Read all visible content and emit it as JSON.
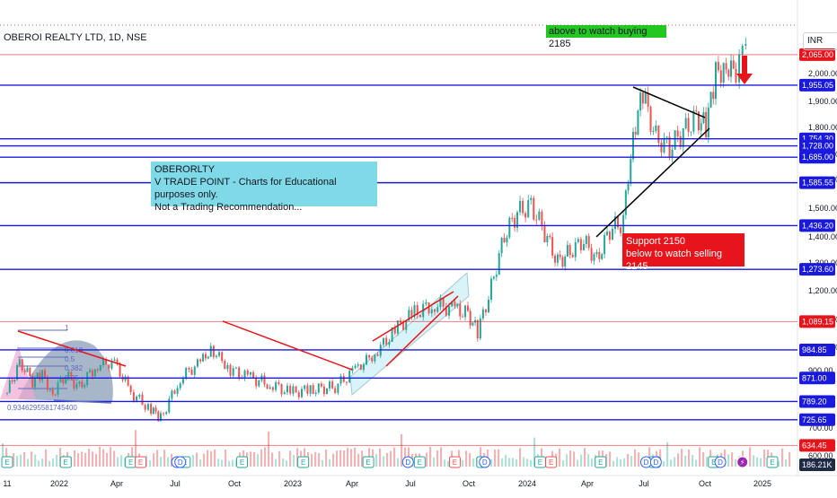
{
  "header": {
    "title": "OBEROI REALTY LTD, 1D, NSE",
    "currency": "INR"
  },
  "notes": {
    "edu_lines": [
      "OBERORLTY",
      "V TRADE POINT - Charts for Educational purposes only.",
      "Not a Trading Recommendation..."
    ],
    "support_lines": [
      "Support 2150",
      "below to watch selling 2145"
    ],
    "buy_line": "above to watch buying 2185"
  },
  "colors": {
    "bull": "#26a69a",
    "bear": "#ef5350",
    "level_blue": "#1a1adc",
    "level_red": "#e8141b",
    "trend_red": "#e8141b",
    "channel_fill": "#b2ebf2",
    "fib_fill": "#8a9db5",
    "volume_label_bg": "#1f2a44"
  },
  "chart_data": {
    "type": "candlestick",
    "symbol": "OBEROI REALTY LTD",
    "interval": "1D",
    "exchange": "NSE",
    "x_range": [
      "2021-11-01",
      "2025-01-31"
    ],
    "x_tick_labels": [
      "11",
      "2022",
      "Apr",
      "Jul",
      "Oct",
      "2023",
      "Apr",
      "Jul",
      "Oct",
      "2024",
      "Apr",
      "Jul",
      "Oct",
      "2025"
    ],
    "y_tick_labels": [
      "600.00",
      "700.00",
      "800.00",
      "900.00",
      "1,000.00",
      "1,100.00",
      "1,200.00",
      "1,300.00",
      "1,400.00",
      "1,500.00",
      "1,600.00",
      "1,700.00",
      "1,800.00",
      "1,900.00",
      "2,000.00"
    ],
    "price_path": [
      [
        "2021-11-01",
        820
      ],
      [
        "2021-11-20",
        930
      ],
      [
        "2021-12-10",
        860
      ],
      [
        "2021-12-25",
        880
      ],
      [
        "2022-01-10",
        820
      ],
      [
        "2022-01-30",
        880
      ],
      [
        "2022-02-20",
        840
      ],
      [
        "2022-03-20",
        920
      ],
      [
        "2022-04-15",
        930
      ],
      [
        "2022-05-10",
        820
      ],
      [
        "2022-06-10",
        760
      ],
      [
        "2022-06-25",
        730
      ],
      [
        "2022-07-25",
        870
      ],
      [
        "2022-08-25",
        930
      ],
      [
        "2022-09-10",
        990
      ],
      [
        "2022-10-10",
        900
      ],
      [
        "2022-11-10",
        870
      ],
      [
        "2022-12-10",
        850
      ],
      [
        "2023-01-10",
        820
      ],
      [
        "2023-02-10",
        830
      ],
      [
        "2023-03-20",
        840
      ],
      [
        "2023-04-20",
        900
      ],
      [
        "2023-05-20",
        970
      ],
      [
        "2023-06-20",
        1060
      ],
      [
        "2023-07-20",
        1120
      ],
      [
        "2023-08-20",
        1150
      ],
      [
        "2023-09-20",
        1130
      ],
      [
        "2023-10-10",
        1120
      ],
      [
        "2023-10-25",
        1050
      ],
      [
        "2023-11-15",
        1210
      ],
      [
        "2023-12-05",
        1400
      ],
      [
        "2023-12-25",
        1480
      ],
      [
        "2024-01-15",
        1510
      ],
      [
        "2024-02-05",
        1410
      ],
      [
        "2024-02-25",
        1300
      ],
      [
        "2024-03-15",
        1340
      ],
      [
        "2024-04-05",
        1380
      ],
      [
        "2024-04-25",
        1310
      ],
      [
        "2024-05-15",
        1420
      ],
      [
        "2024-06-05",
        1450
      ],
      [
        "2024-06-20",
        1780
      ],
      [
        "2024-07-05",
        1920
      ],
      [
        "2024-07-25",
        1760
      ],
      [
        "2024-08-15",
        1720
      ],
      [
        "2024-09-05",
        1780
      ],
      [
        "2024-09-25",
        1840
      ],
      [
        "2024-10-10",
        1800
      ],
      [
        "2024-10-25",
        1990
      ],
      [
        "2024-11-10",
        2040
      ],
      [
        "2024-11-25",
        1970
      ],
      [
        "2024-12-05",
        2060
      ],
      [
        "2024-12-15",
        2230
      ]
    ],
    "volume_label": "186.21K"
  },
  "levels": [
    {
      "label": "2,065.00",
      "value": 2065,
      "style": "red"
    },
    {
      "label": "1,955.05",
      "value": 1955.05,
      "style": "blue"
    },
    {
      "label": "1,754.30",
      "value": 1754.3,
      "style": "blue"
    },
    {
      "label": "1,728.00",
      "value": 1728,
      "style": "blue"
    },
    {
      "label": "1,685.00",
      "value": 1685,
      "style": "blue"
    },
    {
      "label": "1,585.55",
      "value": 1585.55,
      "style": "blue"
    },
    {
      "label": "1,436.20",
      "value": 1436.2,
      "style": "blue"
    },
    {
      "label": "1,273.60",
      "value": 1273.6,
      "style": "blue"
    },
    {
      "label": "1,089.15",
      "value": 1089.15,
      "style": "red"
    },
    {
      "label": "984.85",
      "value": 984.85,
      "style": "blue"
    },
    {
      "label": "871.00",
      "value": 871,
      "style": "blue"
    },
    {
      "label": "789.20",
      "value": 789.2,
      "style": "blue"
    },
    {
      "label": "725.65",
      "value": 725.65,
      "style": "blue"
    },
    {
      "label": "634.45",
      "value": 634.45,
      "style": "red"
    }
  ],
  "fib_labels": [
    "1",
    "0.618",
    "0.5",
    "0.382",
    "0.25",
    "0.9346295581745400"
  ],
  "event_markers": {
    "earnings": [
      "2021-11-01",
      "2022-01-30",
      "2022-05-10",
      "2022-08-01",
      "2022-10-28",
      "2023-01-30",
      "2023-05-10",
      "2023-07-28",
      "2023-11-01",
      "2024-01-29",
      "2024-05-01",
      "2024-07-23",
      "2024-10-22",
      "2025-01-20"
    ],
    "dividends": [
      "2022-07-20",
      "2022-07-25",
      "2023-07-10",
      "2023-11-05",
      "2024-07-10",
      "2024-07-25",
      "2024-11-01"
    ],
    "splits": [
      "2022-05-25",
      "2023-09-20",
      "2024-02-15"
    ],
    "flash": [
      "2024-12-05"
    ]
  }
}
